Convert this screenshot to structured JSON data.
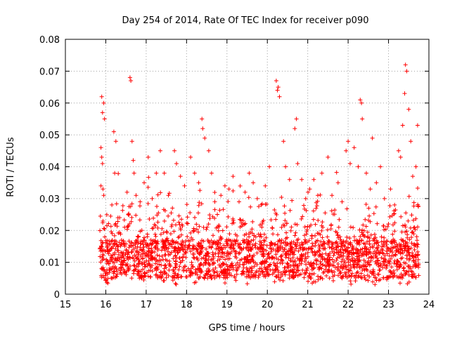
{
  "chart_data": {
    "type": "scatter",
    "title": "Day 254 of 2014, Rate Of TEC Index for receiver p090",
    "xlabel": "GPS time / hours",
    "ylabel": "ROTI / TECUs",
    "xlim": [
      15,
      24
    ],
    "ylim": [
      0,
      0.08
    ],
    "x_ticks": [
      15,
      16,
      17,
      18,
      19,
      20,
      21,
      22,
      23,
      24
    ],
    "x_tick_labels": [
      "15",
      "16",
      "17",
      "18",
      "19",
      "20",
      "21",
      "22",
      "23",
      "24"
    ],
    "y_ticks": [
      0,
      0.01,
      0.02,
      0.03,
      0.04,
      0.05,
      0.06,
      0.07,
      0.08
    ],
    "y_tick_labels": [
      "0",
      "0.01",
      "0.02",
      "0.03",
      "0.04",
      "0.05",
      "0.06",
      "0.07",
      "0.08"
    ],
    "grid": true,
    "marker": "+",
    "color": "#ff0000",
    "x_data_range": [
      15.85,
      23.75
    ],
    "series": [
      {
        "name": "p090",
        "points": [
          [
            15.9,
            0.062
          ],
          [
            15.92,
            0.057
          ],
          [
            15.95,
            0.06
          ],
          [
            15.97,
            0.055
          ],
          [
            15.88,
            0.046
          ],
          [
            15.9,
            0.043
          ],
          [
            15.92,
            0.041
          ],
          [
            15.88,
            0.034
          ],
          [
            15.93,
            0.033
          ],
          [
            15.95,
            0.031
          ],
          [
            16.2,
            0.051
          ],
          [
            16.25,
            0.048
          ],
          [
            16.22,
            0.038
          ],
          [
            16.15,
            0.028
          ],
          [
            16.3,
            0.024
          ],
          [
            16.6,
            0.068
          ],
          [
            16.62,
            0.067
          ],
          [
            16.65,
            0.048
          ],
          [
            16.68,
            0.042
          ],
          [
            16.7,
            0.038
          ],
          [
            16.75,
            0.031
          ],
          [
            16.85,
            0.029
          ],
          [
            16.95,
            0.035
          ],
          [
            17.05,
            0.043
          ],
          [
            17.15,
            0.03
          ],
          [
            17.25,
            0.038
          ],
          [
            17.35,
            0.045
          ],
          [
            17.45,
            0.038
          ],
          [
            17.55,
            0.031
          ],
          [
            17.7,
            0.045
          ],
          [
            17.75,
            0.041
          ],
          [
            17.85,
            0.037
          ],
          [
            17.95,
            0.034
          ],
          [
            18.1,
            0.043
          ],
          [
            18.2,
            0.038
          ],
          [
            18.3,
            0.035
          ],
          [
            18.38,
            0.055
          ],
          [
            18.4,
            0.052
          ],
          [
            18.45,
            0.049
          ],
          [
            18.55,
            0.045
          ],
          [
            18.62,
            0.038
          ],
          [
            18.7,
            0.029
          ],
          [
            18.85,
            0.031
          ],
          [
            18.95,
            0.034
          ],
          [
            19.05,
            0.033
          ],
          [
            19.15,
            0.037
          ],
          [
            19.3,
            0.029
          ],
          [
            19.45,
            0.032
          ],
          [
            19.55,
            0.038
          ],
          [
            19.65,
            0.035
          ],
          [
            19.75,
            0.03
          ],
          [
            19.85,
            0.028
          ],
          [
            19.95,
            0.034
          ],
          [
            20.05,
            0.04
          ],
          [
            20.22,
            0.067
          ],
          [
            20.25,
            0.064
          ],
          [
            20.27,
            0.065
          ],
          [
            20.3,
            0.062
          ],
          [
            20.4,
            0.048
          ],
          [
            20.45,
            0.04
          ],
          [
            20.55,
            0.036
          ],
          [
            20.68,
            0.052
          ],
          [
            20.72,
            0.055
          ],
          [
            20.75,
            0.041
          ],
          [
            20.85,
            0.036
          ],
          [
            20.95,
            0.03
          ],
          [
            21.05,
            0.033
          ],
          [
            21.15,
            0.036
          ],
          [
            21.25,
            0.031
          ],
          [
            21.35,
            0.038
          ],
          [
            21.5,
            0.043
          ],
          [
            21.6,
            0.031
          ],
          [
            21.75,
            0.035
          ],
          [
            21.85,
            0.029
          ],
          [
            21.95,
            0.045
          ],
          [
            22.0,
            0.048
          ],
          [
            22.05,
            0.041
          ],
          [
            22.15,
            0.046
          ],
          [
            22.25,
            0.04
          ],
          [
            22.3,
            0.061
          ],
          [
            22.33,
            0.06
          ],
          [
            22.35,
            0.055
          ],
          [
            22.45,
            0.038
          ],
          [
            22.55,
            0.033
          ],
          [
            22.6,
            0.049
          ],
          [
            22.7,
            0.035
          ],
          [
            22.8,
            0.04
          ],
          [
            22.9,
            0.03
          ],
          [
            23.05,
            0.033
          ],
          [
            23.15,
            0.028
          ],
          [
            23.25,
            0.045
          ],
          [
            23.3,
            0.043
          ],
          [
            23.35,
            0.053
          ],
          [
            23.4,
            0.063
          ],
          [
            23.42,
            0.072
          ],
          [
            23.45,
            0.07
          ],
          [
            23.5,
            0.058
          ],
          [
            23.55,
            0.048
          ],
          [
            23.6,
            0.037
          ],
          [
            23.68,
            0.04
          ],
          [
            23.72,
            0.053
          ]
        ]
      }
    ]
  }
}
